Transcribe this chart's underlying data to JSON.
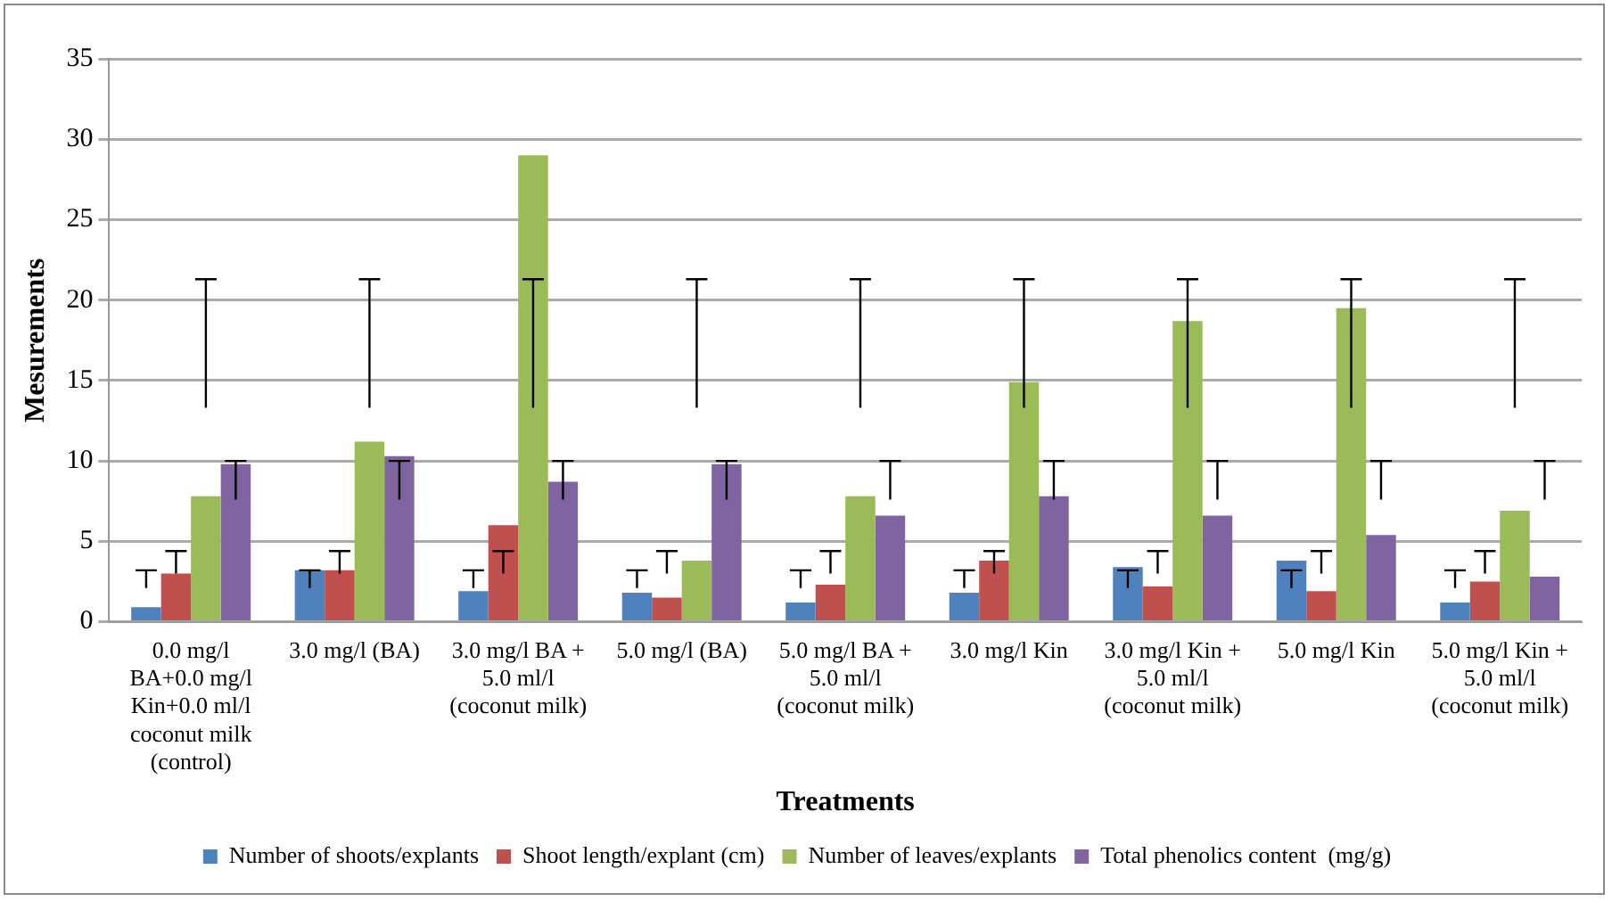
{
  "chart_data": {
    "type": "bar",
    "xlabel": "Treatments",
    "ylabel": "Mesurements",
    "categories": [
      "0.0 mg/l BA+0.0 mg/l Kin+0.0 ml/l coconut milk (control)",
      "3.0 mg/l (BA)",
      "3.0 mg/l BA + 5.0 ml/l (coconut milk)",
      "5.0 mg/l (BA)",
      "5.0 mg/l BA + 5.0 ml/l (coconut milk)",
      "3.0 mg/l Kin",
      "3.0 mg/l Kin + 5.0 ml/l (coconut milk)",
      "5.0 mg/l Kin",
      "5.0 mg/l Kin + 5.0 ml/l (coconut milk)"
    ],
    "series": [
      {
        "name": "Number of shoots/explants",
        "color": "#4f81bd",
        "values": [
          0.9,
          3.2,
          1.9,
          1.8,
          1.2,
          1.8,
          3.4,
          3.8,
          1.2
        ],
        "errors": [
          [
            2.1,
            3.2
          ],
          [
            2.1,
            3.2
          ],
          [
            2.1,
            3.2
          ],
          [
            2.1,
            3.2
          ],
          [
            2.1,
            3.2
          ],
          [
            2.1,
            3.2
          ],
          [
            2.1,
            3.2
          ],
          [
            2.1,
            3.2
          ],
          [
            2.1,
            3.2
          ]
        ]
      },
      {
        "name": "Shoot length/explant (cm)",
        "color": "#c0504d",
        "values": [
          3.0,
          3.2,
          6.0,
          1.5,
          2.3,
          3.8,
          2.2,
          1.9,
          2.5
        ],
        "errors": [
          [
            3.0,
            4.4
          ],
          [
            3.0,
            4.4
          ],
          [
            3.0,
            4.4
          ],
          [
            3.0,
            4.4
          ],
          [
            3.0,
            4.4
          ],
          [
            3.0,
            4.4
          ],
          [
            3.0,
            4.4
          ],
          [
            3.0,
            4.4
          ],
          [
            3.0,
            4.4
          ]
        ]
      },
      {
        "name": "Number of leaves/explants",
        "color": "#9bbb59",
        "values": [
          7.8,
          11.2,
          29.0,
          3.8,
          7.8,
          14.9,
          18.7,
          19.5,
          6.9
        ],
        "errors": [
          [
            13.3,
            21.3
          ],
          [
            13.3,
            21.3
          ],
          [
            13.3,
            21.3
          ],
          [
            13.3,
            21.3
          ],
          [
            13.3,
            21.3
          ],
          [
            13.3,
            21.3
          ],
          [
            13.3,
            21.3
          ],
          [
            13.3,
            21.3
          ],
          [
            13.3,
            21.3
          ]
        ]
      },
      {
        "name": "Total phenolics content  (mg/g)",
        "color": "#8064a2",
        "values": [
          9.8,
          10.3,
          8.7,
          9.8,
          6.6,
          7.8,
          6.6,
          5.4,
          2.8
        ],
        "errors": [
          [
            7.6,
            10.0
          ],
          [
            7.6,
            10.0
          ],
          [
            7.6,
            10.0
          ],
          [
            7.6,
            10.0
          ],
          [
            7.6,
            10.0
          ],
          [
            7.6,
            10.0
          ],
          [
            7.6,
            10.0
          ],
          [
            7.6,
            10.0
          ],
          [
            7.6,
            10.0
          ]
        ]
      }
    ],
    "ylim": [
      0,
      35
    ],
    "yticks": [
      0,
      5,
      10,
      15,
      20,
      25,
      30,
      35
    ],
    "grid": "y",
    "legend": "bottom"
  }
}
